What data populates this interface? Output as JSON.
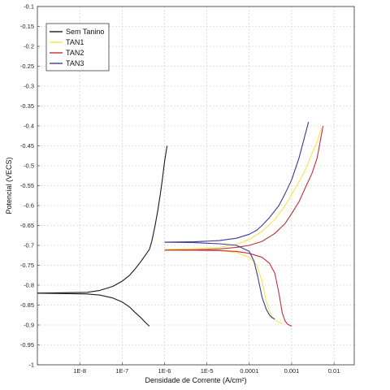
{
  "chart_data": {
    "type": "line",
    "xlabel": "Densidade de Corrente (A/cm²)",
    "ylabel": "Potencial (VECS)",
    "x_scale": "log",
    "xlim": [
      1e-09,
      0.03
    ],
    "ylim": [
      -1,
      -0.1
    ],
    "grid": true,
    "legend_position": "top-left",
    "x_ticks": [
      {
        "value": 1e-08,
        "label": "1E-8"
      },
      {
        "value": 1e-07,
        "label": "1E-7"
      },
      {
        "value": 1e-06,
        "label": "1E-6"
      },
      {
        "value": 1e-05,
        "label": "1E-5"
      },
      {
        "value": 0.0001,
        "label": "0.0001"
      },
      {
        "value": 0.001,
        "label": "0.001"
      },
      {
        "value": 0.01,
        "label": "0.01"
      }
    ],
    "y_ticks": [
      -0.1,
      -0.15,
      -0.2,
      -0.25,
      -0.3,
      -0.35,
      -0.4,
      -0.45,
      -0.5,
      -0.55,
      -0.6,
      -0.65,
      -0.7,
      -0.75,
      -0.8,
      -0.85,
      -0.9,
      -0.95,
      -1
    ],
    "series": [
      {
        "name": "Sem Tanino",
        "color": "#1a1a1a",
        "x": [
          1e-09,
          1.5e-08,
          3e-08,
          6e-08,
          1e-07,
          1.5e-07,
          2e-07,
          2.8e-07,
          3.5e-07,
          4.4e-07,
          5e-07,
          6e-07,
          7e-07,
          8e-07,
          9e-07,
          1e-06,
          1.15e-06
        ],
        "y": [
          -0.82,
          -0.818,
          -0.813,
          -0.803,
          -0.79,
          -0.775,
          -0.76,
          -0.74,
          -0.725,
          -0.71,
          -0.69,
          -0.65,
          -0.61,
          -0.57,
          -0.53,
          -0.49,
          -0.45
        ]
      },
      {
        "name": "Sem Tanino",
        "color": "#1a1a1a",
        "x": [
          1e-09,
          1.5e-08,
          3e-08,
          6e-08,
          1e-07,
          1.5e-07,
          2e-07,
          2.8e-07,
          3.5e-07,
          4.4e-07
        ],
        "y": [
          -0.82,
          -0.822,
          -0.825,
          -0.832,
          -0.842,
          -0.855,
          -0.868,
          -0.882,
          -0.893,
          -0.903
        ]
      },
      {
        "name": "TAN1",
        "color": "#f5e64a",
        "x": [
          1e-06,
          5e-06,
          2e-05,
          5e-05,
          0.0001,
          0.0002,
          0.0004,
          0.0007,
          0.001,
          0.0015,
          0.002,
          0.003,
          0.004,
          0.005
        ],
        "y": [
          -0.71,
          -0.708,
          -0.705,
          -0.697,
          -0.685,
          -0.665,
          -0.635,
          -0.6,
          -0.572,
          -0.54,
          -0.515,
          -0.47,
          -0.44,
          -0.405
        ]
      },
      {
        "name": "TAN1",
        "color": "#f5e64a",
        "x": [
          1e-06,
          5e-06,
          2e-05,
          5e-05,
          0.0001,
          0.00015,
          0.0002,
          0.00025,
          0.0003,
          0.00035,
          0.0004,
          0.0005,
          0.0006
        ],
        "y": [
          -0.71,
          -0.711,
          -0.713,
          -0.718,
          -0.73,
          -0.75,
          -0.79,
          -0.84,
          -0.865,
          -0.88,
          -0.887,
          -0.893,
          -0.897
        ]
      },
      {
        "name": "TAN2",
        "color": "#c0303a",
        "x": [
          1e-06,
          5e-06,
          2e-05,
          5e-05,
          0.0001,
          0.0002,
          0.0004,
          0.0007,
          0.001,
          0.0015,
          0.002,
          0.003,
          0.004,
          0.0055
        ],
        "y": [
          -0.712,
          -0.711,
          -0.709,
          -0.705,
          -0.7,
          -0.69,
          -0.67,
          -0.645,
          -0.62,
          -0.59,
          -0.56,
          -0.52,
          -0.48,
          -0.4
        ]
      },
      {
        "name": "TAN2",
        "color": "#c0303a",
        "x": [
          1e-06,
          5e-06,
          2e-05,
          5e-05,
          0.0001,
          0.0002,
          0.0003,
          0.0004,
          0.0005,
          0.0006,
          0.0007,
          0.0008,
          0.001
        ],
        "y": [
          -0.712,
          -0.712,
          -0.713,
          -0.715,
          -0.72,
          -0.73,
          -0.745,
          -0.77,
          -0.82,
          -0.87,
          -0.89,
          -0.898,
          -0.903
        ]
      },
      {
        "name": "TAN3",
        "color": "#3a3a9a",
        "x": [
          1e-06,
          5e-06,
          2e-05,
          5e-05,
          0.0001,
          0.00015,
          0.0002,
          0.0003,
          0.0005,
          0.0007,
          0.001,
          0.0015,
          0.0025
        ],
        "y": [
          -0.692,
          -0.691,
          -0.688,
          -0.682,
          -0.672,
          -0.662,
          -0.65,
          -0.63,
          -0.6,
          -0.57,
          -0.535,
          -0.48,
          -0.39
        ]
      },
      {
        "name": "TAN3",
        "color": "#3a3a9a",
        "x": [
          1e-06,
          5e-06,
          2e-05,
          5e-05,
          0.0001,
          0.00013,
          0.00016,
          0.0002,
          0.00025,
          0.0003,
          0.00035,
          0.0004
        ],
        "y": [
          -0.692,
          -0.693,
          -0.696,
          -0.7,
          -0.715,
          -0.74,
          -0.78,
          -0.83,
          -0.86,
          -0.875,
          -0.882,
          -0.885
        ]
      }
    ],
    "legend": [
      {
        "name": "Sem Tanino",
        "color": "#1a1a1a"
      },
      {
        "name": "TAN1",
        "color": "#f5e64a"
      },
      {
        "name": "TAN2",
        "color": "#c0303a"
      },
      {
        "name": "TAN3",
        "color": "#3a3a9a"
      }
    ]
  }
}
